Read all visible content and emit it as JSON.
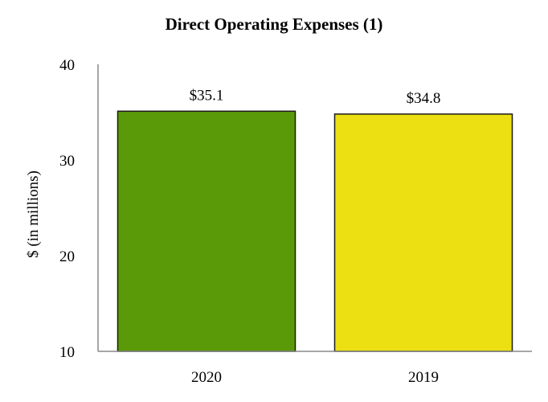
{
  "chart_data": {
    "type": "bar",
    "title": "Direct Operating Expenses (1)",
    "xlabel": "",
    "ylabel": "$ (in millions)",
    "ylim": [
      10,
      40
    ],
    "yticks": [
      10,
      20,
      30,
      40
    ],
    "categories": [
      "2020",
      "2019"
    ],
    "values": [
      35.1,
      34.8
    ],
    "data_labels": [
      "$35.1",
      "$34.8"
    ],
    "bar_colors": [
      "#5a9a08",
      "#ede012"
    ],
    "bar_edge_color": "#1a1a1a",
    "grid": false,
    "legend": "none"
  }
}
